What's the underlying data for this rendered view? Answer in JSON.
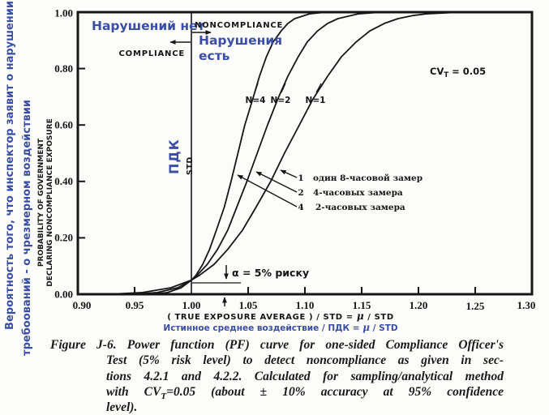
{
  "colors": {
    "blue": "#3a4ea5",
    "ink": "#161616",
    "bg": "#fcfcfa"
  },
  "y_axis": {
    "ru_label_line1": "Вероятность того, что инспектор заявит о нарушении",
    "ru_label_line2": "требоований - о чрезмерном воздействии",
    "en_label_line1": "PROBABILITY OF GOVERNMENT",
    "en_label_line2": "DECLARING NONCOMPLIANCE EXPOSURE"
  },
  "x_axis": {
    "en_label_pre": "( TRUE EXPOSURE AVERAGE ) / STD = ",
    "mu": "μ",
    "en_label_post": " / STD",
    "ru_label_pre": "Истинное среднее воздействие / ПДК = ",
    "ru_label_post": " / STD"
  },
  "annotations": {
    "no_violations_ru": "Нарушений нет",
    "noncompliance": "NONCOMPLIANCE",
    "compliance": "COMPLIANCE",
    "violations_ru_line1": "Нарушения",
    "violations_ru_line2": "есть",
    "cv_pre": "CV",
    "cv_sub": "T",
    "cv_post": " = 0.05",
    "pdk_ru": "ПДК",
    "std": "STD",
    "alpha_note": "α = 5% риску",
    "curve_label_n4": "N=4",
    "curve_label_n2": "N=2",
    "curve_label_n1": "N=1",
    "legend": [
      {
        "n": "1",
        "label": "один 8-часовой замер"
      },
      {
        "n": "2",
        "label": "4-часовых замера"
      },
      {
        "n": "4",
        "label": "2-часовых замера"
      }
    ]
  },
  "caption": {
    "label": "Figure J-6.",
    "line1": "Power function (PF) curve for one-sided Compliance Officer's",
    "line2": "Test (5% risk level) to detect noncompliance as given in sec-",
    "line3": "tions 4.2.1 and 4.2.2. Calculated for sampling/analytical method",
    "line4_pre": "with CV",
    "line4_sub": "T",
    "line4_post": "=0.05 (about ± 10% accuracy at 95% confidence",
    "line5": "level)."
  },
  "chart_data": {
    "type": "line",
    "title": "Power function (PF) curve for one-sided Compliance Officer's Test (5% risk level)",
    "xlabel": "( TRUE EXPOSURE AVERAGE ) / STD = μ / STD",
    "ylabel": "PROBABILITY OF GOVERNMENT DECLARING NONCOMPLIANCE EXPOSURE",
    "xlim": [
      0.9,
      1.3
    ],
    "ylim": [
      0.0,
      1.0
    ],
    "x_ticks": [
      "0.90",
      "0.95",
      "1.00",
      "1.05",
      "1.10",
      "1.15",
      "1.20",
      "1.25",
      "1.30"
    ],
    "y_ticks": [
      "1.00",
      "0.80",
      "0.60",
      "0.40",
      "0.20",
      "0.00"
    ],
    "grid": false,
    "reference": {
      "alpha_risk": "5%",
      "cv_t": 0.05,
      "critical_x": 1.0,
      "axis_arrow_x": 1.03
    },
    "series": [
      {
        "name": "N=4",
        "samples_desc": "4 2-часовых замера",
        "points": [
          [
            0.9,
            0.0
          ],
          [
            0.954,
            0.0
          ],
          [
            0.966,
            0.001
          ],
          [
            0.979,
            0.006
          ],
          [
            0.991,
            0.023
          ],
          [
            1.0,
            0.05
          ],
          [
            1.004,
            0.067
          ],
          [
            1.01,
            0.106
          ],
          [
            1.016,
            0.159
          ],
          [
            1.022,
            0.227
          ],
          [
            1.029,
            0.309
          ],
          [
            1.035,
            0.401
          ],
          [
            1.041,
            0.5
          ],
          [
            1.047,
            0.599
          ],
          [
            1.054,
            0.691
          ],
          [
            1.06,
            0.773
          ],
          [
            1.066,
            0.841
          ],
          [
            1.072,
            0.894
          ],
          [
            1.079,
            0.933
          ],
          [
            1.085,
            0.96
          ],
          [
            1.091,
            0.977
          ],
          [
            1.104,
            0.994
          ],
          [
            1.116,
            0.999
          ],
          [
            1.129,
            1.0
          ],
          [
            1.3,
            1.0
          ]
        ]
      },
      {
        "name": "N=2",
        "samples_desc": "2 4-часовых замера",
        "points": [
          [
            0.9,
            0.0
          ],
          [
            0.934,
            0.0
          ],
          [
            0.952,
            0.001
          ],
          [
            0.97,
            0.006
          ],
          [
            0.988,
            0.023
          ],
          [
            1.0,
            0.05
          ],
          [
            1.005,
            0.067
          ],
          [
            1.014,
            0.106
          ],
          [
            1.023,
            0.159
          ],
          [
            1.032,
            0.227
          ],
          [
            1.04,
            0.309
          ],
          [
            1.049,
            0.401
          ],
          [
            1.058,
            0.5
          ],
          [
            1.067,
            0.599
          ],
          [
            1.076,
            0.691
          ],
          [
            1.085,
            0.773
          ],
          [
            1.094,
            0.841
          ],
          [
            1.102,
            0.894
          ],
          [
            1.111,
            0.933
          ],
          [
            1.12,
            0.96
          ],
          [
            1.129,
            0.977
          ],
          [
            1.147,
            0.994
          ],
          [
            1.164,
            0.999
          ],
          [
            1.182,
            1.0
          ],
          [
            1.3,
            1.0
          ]
        ]
      },
      {
        "name": "N=1",
        "samples_desc": "1 один 8-часовой замер",
        "points": [
          [
            0.9,
            0.0
          ],
          [
            0.907,
            0.0
          ],
          [
            0.932,
            0.001
          ],
          [
            0.957,
            0.006
          ],
          [
            0.982,
            0.023
          ],
          [
            1.0,
            0.05
          ],
          [
            1.007,
            0.067
          ],
          [
            1.02,
            0.106
          ],
          [
            1.032,
            0.159
          ],
          [
            1.045,
            0.227
          ],
          [
            1.057,
            0.309
          ],
          [
            1.07,
            0.401
          ],
          [
            1.082,
            0.5
          ],
          [
            1.095,
            0.599
          ],
          [
            1.107,
            0.691
          ],
          [
            1.12,
            0.773
          ],
          [
            1.132,
            0.841
          ],
          [
            1.145,
            0.894
          ],
          [
            1.157,
            0.933
          ],
          [
            1.17,
            0.96
          ],
          [
            1.182,
            0.977
          ],
          [
            1.195,
            0.988
          ],
          [
            1.207,
            0.994
          ],
          [
            1.232,
            0.999
          ],
          [
            1.257,
            1.0
          ],
          [
            1.3,
            1.0
          ]
        ]
      }
    ]
  }
}
